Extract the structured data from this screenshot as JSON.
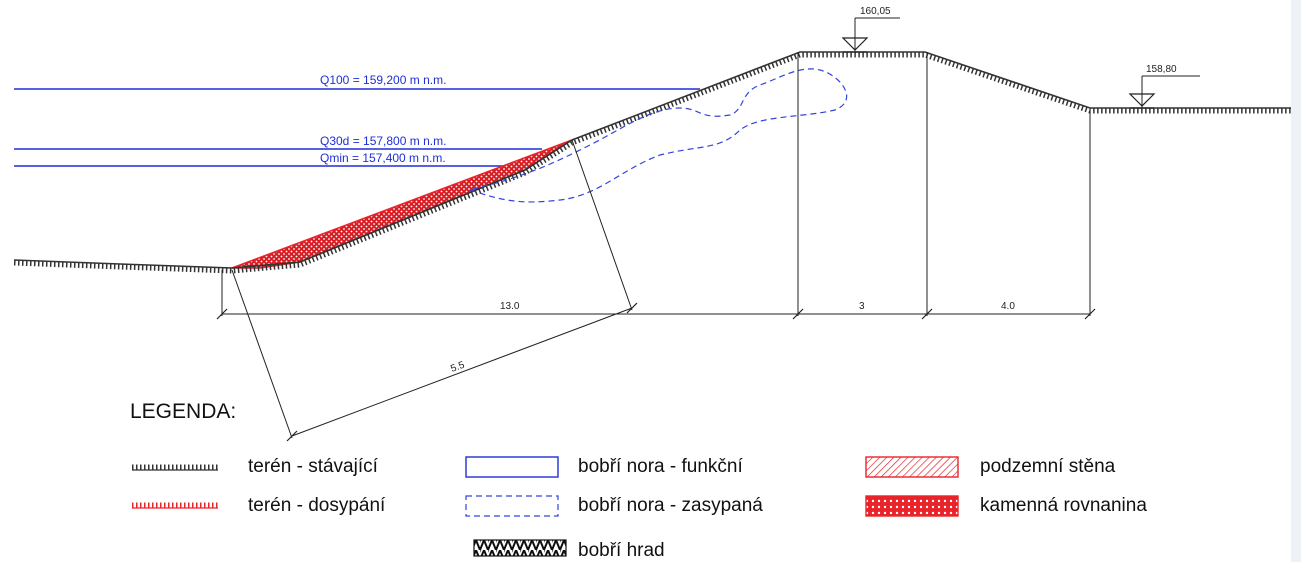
{
  "water_levels": {
    "q100": "Q100 = 159,200 m n.m.",
    "q30d": "Q30d = 157,800 m n.m.",
    "qmin": "Qmin = 157,400 m n.m."
  },
  "elevation_marks": {
    "crest": "160,05",
    "landside": "158,80"
  },
  "dimensions": {
    "slope_horizontal": "13.0",
    "crest_width": "3",
    "landside_width": "4.0",
    "slope_perpendicular": "5.5"
  },
  "legend": {
    "title": "LEGENDA:",
    "items": [
      "terén - stávající",
      "bobří nora - funkční",
      "podzemní stěna",
      "terén - dosypání",
      "bobří nora - zasypaná",
      "kamenná rovnanina",
      "bobří hrad"
    ]
  },
  "colors": {
    "water_line": "#1f2fd6",
    "burrow": "#3344dd",
    "fill_red": "#e8242a",
    "terrain": "#333333"
  }
}
